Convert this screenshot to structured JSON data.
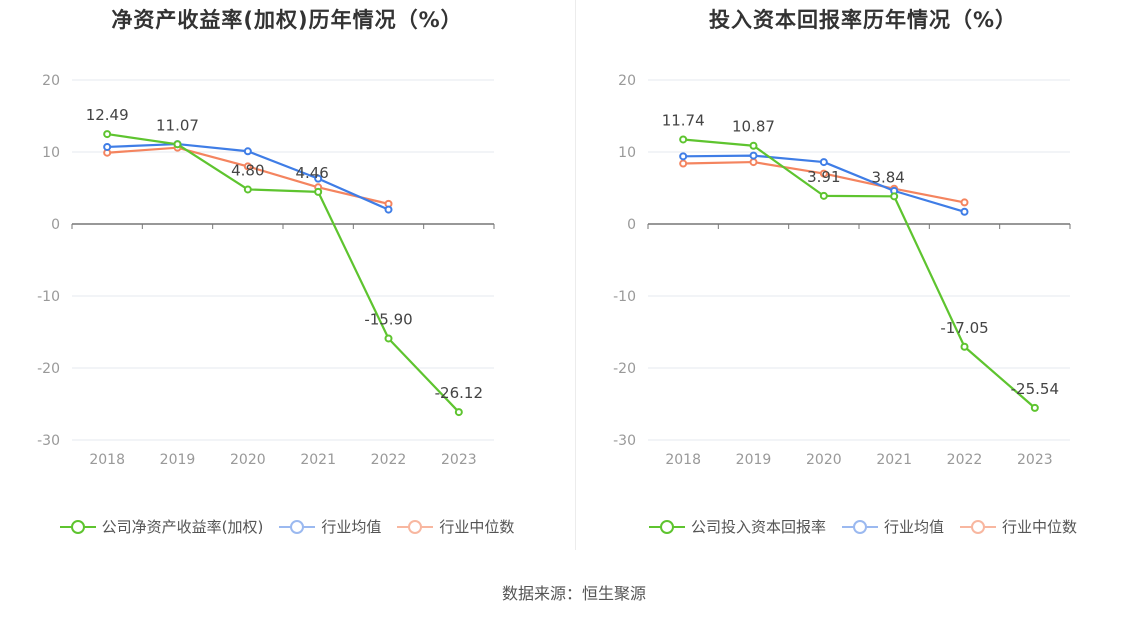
{
  "chart_data": [
    {
      "type": "line",
      "title": "净资产收益率(加权)历年情况（%）",
      "categories": [
        "2018",
        "2019",
        "2020",
        "2021",
        "2022",
        "2023"
      ],
      "ylim": [
        -30,
        20
      ],
      "yticks": [
        20,
        10,
        0,
        -10,
        -20,
        -30
      ],
      "grid": true,
      "legend_position": "bottom",
      "series": [
        {
          "name": "公司净资产收益率(加权)",
          "color": "#5ec42f",
          "values": [
            12.49,
            11.07,
            4.8,
            4.46,
            -15.9,
            -26.12
          ],
          "labels": [
            "12.49",
            "11.07",
            "4.80",
            "4.46",
            "-15.90",
            "-26.12"
          ]
        },
        {
          "name": "行业均值",
          "color": "#3f7de6",
          "values": [
            10.7,
            11.1,
            10.1,
            6.3,
            2.0,
            null
          ]
        },
        {
          "name": "行业中位数",
          "color": "#f4845f",
          "values": [
            9.9,
            10.6,
            8.0,
            5.1,
            2.8,
            null
          ]
        }
      ]
    },
    {
      "type": "line",
      "title": "投入资本回报率历年情况（%）",
      "categories": [
        "2018",
        "2019",
        "2020",
        "2021",
        "2022",
        "2023"
      ],
      "ylim": [
        -30,
        20
      ],
      "yticks": [
        20,
        10,
        0,
        -10,
        -20,
        -30
      ],
      "grid": true,
      "legend_position": "bottom",
      "series": [
        {
          "name": "公司投入资本回报率",
          "color": "#5ec42f",
          "values": [
            11.74,
            10.87,
            3.91,
            3.84,
            -17.05,
            -25.54
          ],
          "labels": [
            "11.74",
            "10.87",
            "3.91",
            "3.84",
            "-17.05",
            "-25.54"
          ]
        },
        {
          "name": "行业均值",
          "color": "#3f7de6",
          "values": [
            9.4,
            9.5,
            8.6,
            4.6,
            1.7,
            null
          ]
        },
        {
          "name": "行业中位数",
          "color": "#f4845f",
          "values": [
            8.4,
            8.6,
            7.0,
            4.9,
            3.0,
            null
          ]
        }
      ]
    }
  ],
  "source": {
    "label": "数据来源：恒生聚源"
  }
}
